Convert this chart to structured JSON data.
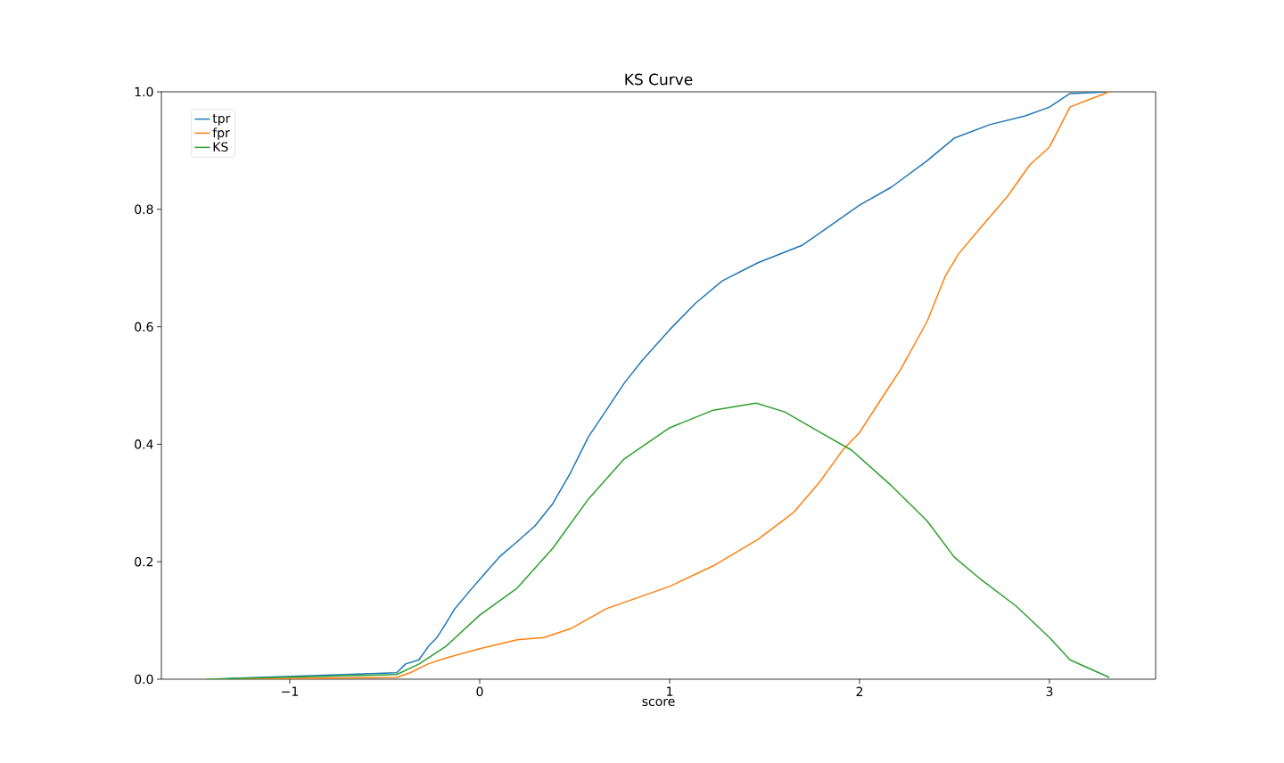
{
  "chart_data": {
    "type": "line",
    "title": "KS Curve",
    "xlabel": "score",
    "xlim": [
      -1.676,
      3.559
    ],
    "ylim": [
      0,
      1
    ],
    "xticks": [
      {
        "value": -1,
        "label": "−1"
      },
      0,
      1,
      2,
      3
    ],
    "yticks": [
      {
        "value": 0,
        "label": "0.0"
      },
      {
        "value": 0.2,
        "label": "0.2"
      },
      {
        "value": 0.4,
        "label": "0.4"
      },
      {
        "value": 0.6,
        "label": "0.6"
      },
      {
        "value": 0.8,
        "label": "0.8"
      },
      {
        "value": 1,
        "label": "1.0"
      }
    ],
    "legend": "top left",
    "grid": false,
    "marker": "none",
    "line_style": "solid",
    "series": [
      {
        "name": "tpr",
        "color": "#1f77b4",
        "x": [
          -1.44,
          -0.437,
          -0.39,
          -0.32,
          -0.27,
          -0.225,
          -0.18,
          -0.131,
          -0.061,
          0,
          0.103,
          0.197,
          0.291,
          0.385,
          0.479,
          0.573,
          0.667,
          0.761,
          0.854,
          1.0,
          1.136,
          1.277,
          1.465,
          1.7,
          2.0,
          2.169,
          2.357,
          2.498,
          2.685,
          2.873,
          3.0,
          3.108,
          3.315
        ],
        "values": [
          0,
          0.011,
          0.026,
          0.033,
          0.056,
          0.071,
          0.094,
          0.12,
          0.147,
          0.17,
          0.208,
          0.234,
          0.261,
          0.299,
          0.352,
          0.413,
          0.458,
          0.504,
          0.542,
          0.595,
          0.64,
          0.678,
          0.709,
          0.739,
          0.807,
          0.838,
          0.883,
          0.921,
          0.944,
          0.959,
          0.974,
          0.997,
          1.0
        ]
      },
      {
        "name": "fpr",
        "color": "#ff7f0e",
        "x": [
          -1.44,
          -0.437,
          -0.366,
          -0.272,
          -0.178,
          0,
          0.197,
          0.338,
          0.479,
          0.667,
          1.0,
          1.23,
          1.465,
          1.653,
          1.793,
          1.911,
          2.0,
          2.122,
          2.216,
          2.357,
          2.451,
          2.521,
          2.638,
          2.779,
          2.897,
          3.0,
          3.108,
          3.202,
          3.315
        ],
        "values": [
          0,
          0.003,
          0.011,
          0.026,
          0.036,
          0.052,
          0.067,
          0.071,
          0.086,
          0.12,
          0.158,
          0.193,
          0.238,
          0.284,
          0.337,
          0.39,
          0.42,
          0.481,
          0.527,
          0.61,
          0.686,
          0.724,
          0.769,
          0.822,
          0.876,
          0.906,
          0.974,
          0.986,
          1.0
        ]
      },
      {
        "name": "KS",
        "color": "#2ca02c",
        "x": [
          -1.44,
          -0.437,
          -0.319,
          -0.178,
          0,
          0.197,
          0.385,
          0.573,
          0.761,
          1.0,
          1.23,
          1.455,
          1.606,
          1.793,
          1.958,
          2.169,
          2.357,
          2.498,
          2.638,
          2.826,
          3.0,
          3.108,
          3.315
        ],
        "values": [
          0,
          0.008,
          0.026,
          0.056,
          0.109,
          0.155,
          0.223,
          0.307,
          0.375,
          0.428,
          0.458,
          0.47,
          0.455,
          0.42,
          0.39,
          0.329,
          0.269,
          0.208,
          0.17,
          0.124,
          0.071,
          0.033,
          0.003
        ]
      }
    ]
  }
}
